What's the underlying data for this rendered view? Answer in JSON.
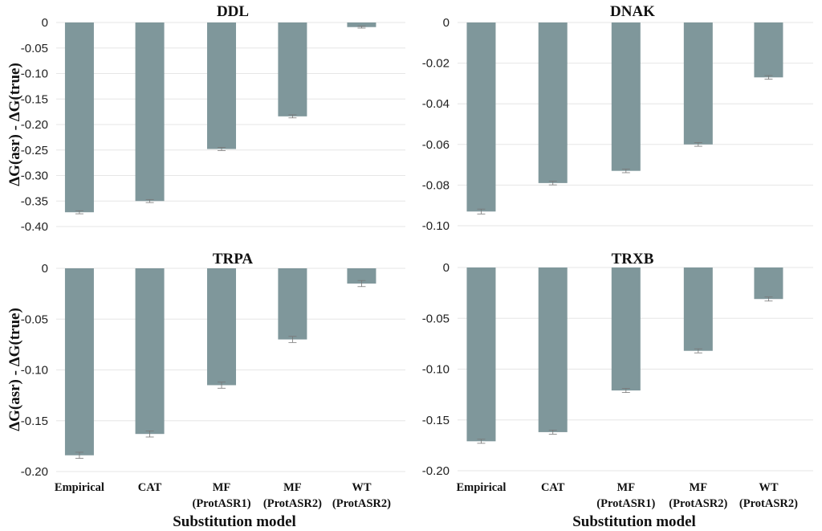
{
  "chart_data": [
    {
      "type": "bar",
      "title": "DDL",
      "categories": [
        "Empirical",
        "CAT",
        "MF (ProtASR1)",
        "MF (ProtASR2)",
        "WT (ProtASR2)"
      ],
      "values": [
        -0.372,
        -0.35,
        -0.248,
        -0.184,
        -0.009
      ],
      "errors": [
        0.003,
        0.003,
        0.003,
        0.003,
        0.002
      ],
      "ylim": [
        -0.4,
        0
      ],
      "yticks": [
        "0",
        "-0.05",
        "-0.10",
        "-0.15",
        "-0.20",
        "-0.25",
        "-0.30",
        "-0.35",
        "-0.40"
      ],
      "ytick_values": [
        0,
        -0.05,
        -0.1,
        -0.15,
        -0.2,
        -0.25,
        -0.3,
        -0.35,
        -0.4
      ],
      "ylabel": "ΔG(asr) - ΔG(true)",
      "xlabel": "",
      "grid": true
    },
    {
      "type": "bar",
      "title": "DNAK",
      "categories": [
        "Empirical",
        "CAT",
        "MF (ProtASR1)",
        "MF (ProtASR2)",
        "WT (ProtASR2)"
      ],
      "values": [
        -0.093,
        -0.079,
        -0.073,
        -0.06,
        -0.027
      ],
      "errors": [
        0.0012,
        0.0009,
        0.0009,
        0.0009,
        0.0009
      ],
      "ylim": [
        -0.1,
        0
      ],
      "yticks": [
        "0",
        "-0.02",
        "-0.04",
        "-0.06",
        "-0.08",
        "-0.10"
      ],
      "ytick_values": [
        0,
        -0.02,
        -0.04,
        -0.06,
        -0.08,
        -0.1
      ],
      "ylabel": "",
      "xlabel": "",
      "grid": true
    },
    {
      "type": "bar",
      "title": "TRPA",
      "categories": [
        "Empirical",
        "CAT",
        "MF (ProtASR1)",
        "MF (ProtASR2)",
        "WT (ProtASR2)"
      ],
      "values": [
        -0.184,
        -0.163,
        -0.115,
        -0.07,
        -0.015
      ],
      "errors": [
        0.003,
        0.003,
        0.003,
        0.003,
        0.003
      ],
      "ylim": [
        -0.2,
        0
      ],
      "yticks": [
        "0",
        "-0.05",
        "-0.10",
        "-0.15",
        "-0.20"
      ],
      "ytick_values": [
        0,
        -0.05,
        -0.1,
        -0.15,
        -0.2
      ],
      "ylabel": "ΔG(asr) - ΔG(true)",
      "xlabel": "Substitution model",
      "grid": true
    },
    {
      "type": "bar",
      "title": "TRXB",
      "categories": [
        "Empirical",
        "CAT",
        "MF (ProtASR1)",
        "MF (ProtASR2)",
        "WT (ProtASR2)"
      ],
      "values": [
        -0.171,
        -0.162,
        -0.121,
        -0.082,
        -0.031
      ],
      "errors": [
        0.002,
        0.002,
        0.002,
        0.002,
        0.002
      ],
      "ylim": [
        -0.2,
        0
      ],
      "yticks": [
        "0",
        "-0.05",
        "-0.10",
        "-0.15",
        "-0.20"
      ],
      "ytick_values": [
        0,
        -0.05,
        -0.1,
        -0.15,
        -0.2
      ],
      "ylabel": "",
      "xlabel": "Substitution model",
      "grid": true
    }
  ]
}
